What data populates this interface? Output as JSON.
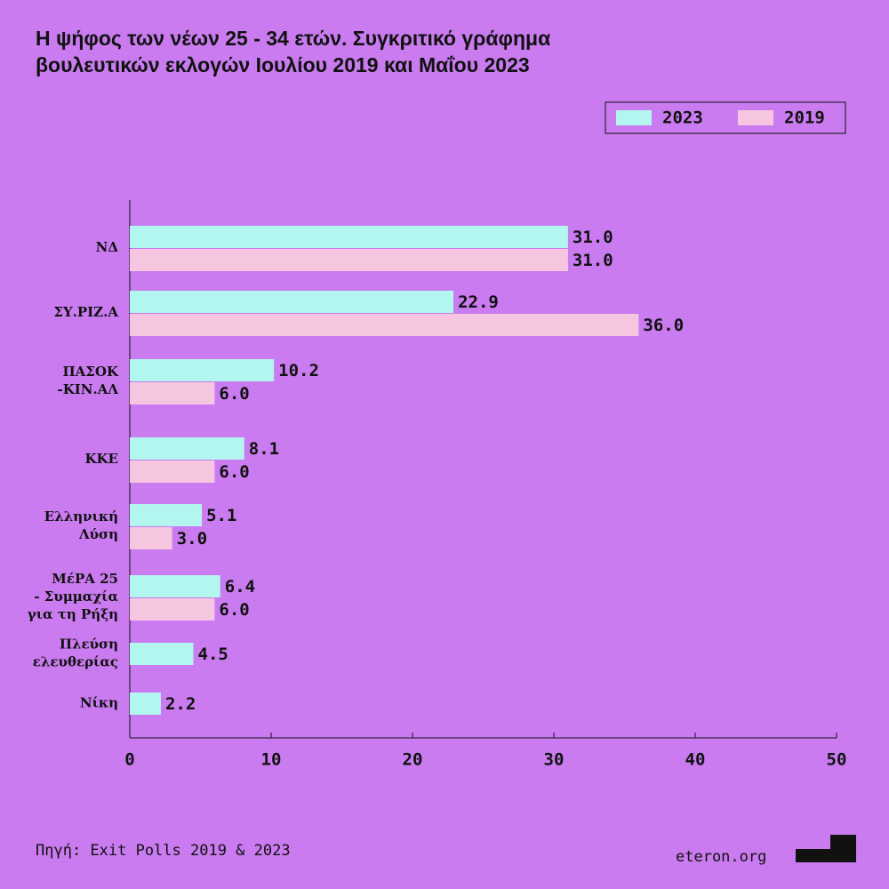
{
  "chart_data": {
    "type": "bar",
    "orientation": "horizontal",
    "title": [
      "Η ψήφος των νέων 25 - 34 ετών. Συγκριτικό γράφημα",
      "βουλευτικών εκλογών Ιουλίου 2019 και Μαΐου 2023"
    ],
    "categories": [
      [
        "ΝΔ"
      ],
      [
        "ΣΥ.ΡΙΖ.Α"
      ],
      [
        "ΠΑΣΟΚ",
        "-ΚΙΝ.ΑΛ"
      ],
      [
        "ΚΚΕ"
      ],
      [
        "Ελληνική",
        "Λύση"
      ],
      [
        "ΜέΡΑ 25",
        "-  Συμμαχία",
        "για τη Ρήξη"
      ],
      [
        "Πλεύση",
        "ελευθερίας"
      ],
      [
        "Νίκη"
      ]
    ],
    "series": [
      {
        "name": "2023",
        "color": "#b3f5ef",
        "values": [
          31.0,
          22.9,
          10.2,
          8.1,
          5.1,
          6.4,
          4.5,
          2.2
        ],
        "value_labels": [
          "31.0",
          "22.9",
          "10.2",
          "8.1",
          "5.1",
          "6.4",
          "4.5",
          "2.2"
        ]
      },
      {
        "name": "2019",
        "color": "#f6c6e0",
        "values": [
          31.0,
          36.0,
          6.0,
          6.0,
          3.0,
          6.0,
          null,
          null
        ],
        "value_labels": [
          "31.0",
          "36.0",
          "6.0",
          "6.0",
          "3.0",
          "6.0",
          null,
          null
        ]
      }
    ],
    "xlim": [
      0,
      50
    ],
    "xticks": [
      0,
      10,
      20,
      30,
      40,
      50
    ],
    "legend": "top-right",
    "source": "Πηγή: Exit Polls 2019 & 2023",
    "brand": "eteron.org"
  }
}
